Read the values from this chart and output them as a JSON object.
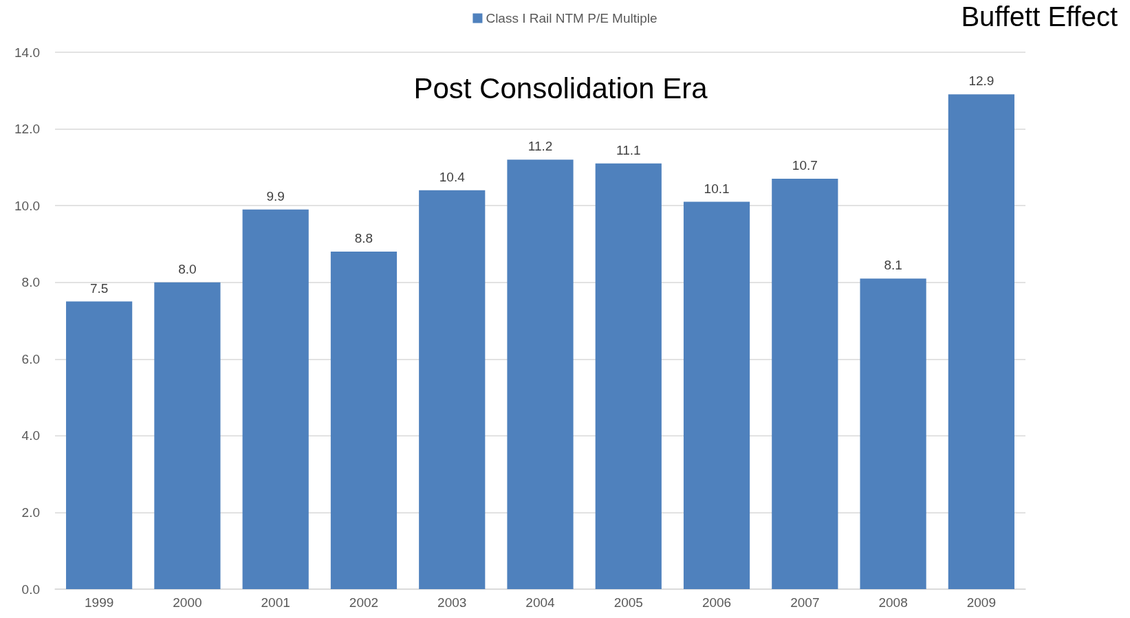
{
  "chart_data": {
    "type": "bar",
    "title": "Post Consolidation Era",
    "categories": [
      "1999",
      "2000",
      "2001",
      "2002",
      "2003",
      "2004",
      "2005",
      "2006",
      "2007",
      "2008",
      "2009"
    ],
    "series": [
      {
        "name": "Class I Rail NTM P/E Multiple",
        "color": "#4f81bd",
        "values": [
          7.5,
          8.0,
          9.9,
          8.8,
          10.4,
          11.2,
          11.1,
          10.1,
          10.7,
          8.1,
          12.9
        ],
        "value_labels": [
          "7.5",
          "8.0",
          "9.9",
          "8.8",
          "10.4",
          "11.2",
          "11.1",
          "10.1",
          "10.7",
          "8.1",
          "12.9"
        ]
      }
    ],
    "ylim": [
      0,
      14
    ],
    "yticks": [
      {
        "value": 0,
        "label": "0.0"
      },
      {
        "value": 2,
        "label": "2.0"
      },
      {
        "value": 4,
        "label": "4.0"
      },
      {
        "value": 6,
        "label": "6.0"
      },
      {
        "value": 8,
        "label": "8.0"
      },
      {
        "value": 10,
        "label": "10.0"
      },
      {
        "value": 12,
        "label": "12.0"
      },
      {
        "value": 14,
        "label": "14.0"
      }
    ],
    "grid": "y",
    "legend": "top",
    "annotations": [
      "Buffett Effect"
    ]
  }
}
